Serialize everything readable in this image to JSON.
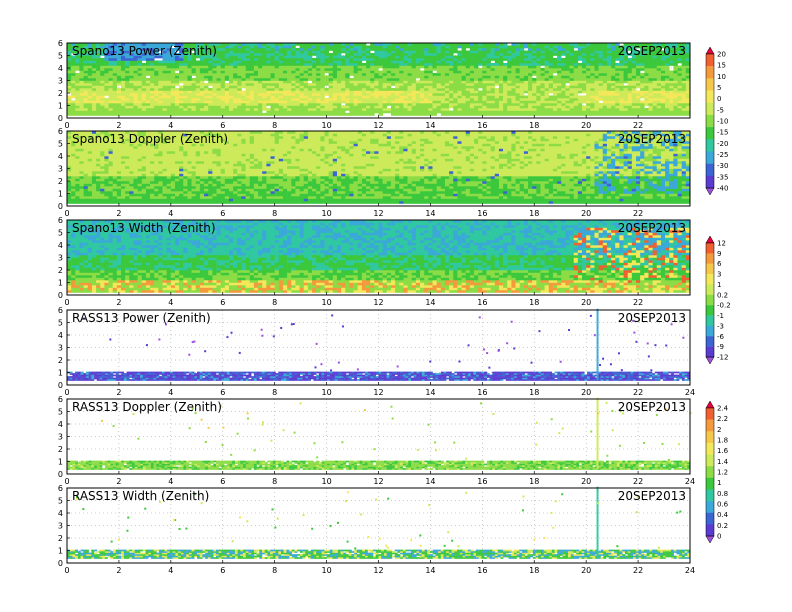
{
  "x_axis_ticks": [
    0,
    2,
    4,
    6,
    8,
    10,
    12,
    14,
    16,
    18,
    20,
    22,
    24
  ],
  "y_axis_ticks": [
    0,
    1,
    2,
    3,
    4,
    5,
    6
  ],
  "chart_data": [
    {
      "type": "heatmap",
      "title": "Spano13 Power (Zenith)",
      "date": "20SEP2013",
      "xlim": [
        0,
        24
      ],
      "ylim": [
        0,
        6
      ],
      "xticks": [
        0,
        2,
        4,
        6,
        8,
        10,
        12,
        14,
        16,
        18,
        20,
        22
      ],
      "colorbar": "power",
      "pattern": "spano_power"
    },
    {
      "type": "heatmap",
      "title": "Spano13 Doppler (Zenith)",
      "date": "20SEP2013",
      "xlim": [
        0,
        24
      ],
      "ylim": [
        0,
        6
      ],
      "xticks": [
        0,
        2,
        4,
        6,
        8,
        10,
        12,
        14,
        16,
        18,
        20,
        22
      ],
      "colorbar": "power",
      "pattern": "spano_doppler"
    },
    {
      "type": "heatmap",
      "title": "Spano13 Width (Zenith)",
      "date": "20SEP2013",
      "xlim": [
        0,
        24
      ],
      "ylim": [
        0,
        6
      ],
      "xticks": [
        0,
        2,
        4,
        6,
        8,
        10,
        12,
        14,
        16,
        18,
        20,
        22
      ],
      "colorbar": "rass_power",
      "pattern": "spano_width"
    },
    {
      "type": "heatmap",
      "title": "RASS13 Power (Zenith)",
      "date": "20SEP2013",
      "xlim": [
        0,
        24
      ],
      "ylim": [
        0,
        6
      ],
      "xticks": [
        0,
        2,
        4,
        6,
        8,
        10,
        12,
        14,
        16,
        18,
        20,
        22,
        24
      ],
      "colorbar": "rass_power",
      "pattern": "rass_power"
    },
    {
      "type": "heatmap",
      "title": "RASS13 Doppler (Zenith)",
      "date": "20SEP2013",
      "xlim": [
        0,
        24
      ],
      "ylim": [
        0,
        6
      ],
      "xticks": [
        0,
        2,
        4,
        6,
        8,
        10,
        12,
        14,
        16,
        18,
        20,
        22,
        24
      ],
      "colorbar": "rass_width",
      "pattern": "rass_doppler"
    },
    {
      "type": "heatmap",
      "title": "RASS13 Width (Zenith)",
      "date": "20SEP2013",
      "xlim": [
        0,
        24
      ],
      "ylim": [
        0,
        6
      ],
      "xticks": [
        0,
        2,
        4,
        6,
        8,
        10,
        12,
        14,
        16,
        18,
        20,
        22,
        24
      ],
      "colorbar": "rass_width",
      "pattern": "rass_width"
    }
  ],
  "colorbars": {
    "power": {
      "labels": [
        "20",
        "15",
        "10",
        "5",
        "0",
        "-5",
        "-10",
        "-15",
        "-20",
        "-25",
        "-30",
        "-35",
        "-40"
      ],
      "colors": [
        "#e8003c",
        "#f06030",
        "#f49a3c",
        "#f6c84a",
        "#f2e85a",
        "#cdea5a",
        "#8cdc46",
        "#3cc83c",
        "#30c8a0",
        "#3aa8d8",
        "#3c64d2",
        "#5a3cd2",
        "#a050e0"
      ]
    },
    "rass_power": {
      "labels": [
        "12",
        "9",
        "6",
        "3",
        "1",
        "0.2",
        "-0.2",
        "-1",
        "-3",
        "-6",
        "-9",
        "-12"
      ],
      "colors": [
        "#e8003c",
        "#f06030",
        "#f49a3c",
        "#f6c84a",
        "#f2e85a",
        "#cdea5a",
        "#8cdc46",
        "#3cc83c",
        "#30c8a0",
        "#3aa8d8",
        "#3c64d2",
        "#5a3cd2",
        "#a050e0"
      ]
    },
    "rass_width": {
      "labels": [
        "2.4",
        "2.2",
        "2",
        "1.8",
        "1.6",
        "1.4",
        "1.2",
        "1",
        "0.8",
        "0.6",
        "0.4",
        "0.2",
        "0"
      ],
      "colors": [
        "#e8003c",
        "#f06030",
        "#f49a3c",
        "#f6c84a",
        "#f2e85a",
        "#cdea5a",
        "#8cdc46",
        "#3cc83c",
        "#30c8a0",
        "#3aa8d8",
        "#3c64d2",
        "#5a3cd2",
        "#a050e0"
      ]
    }
  }
}
